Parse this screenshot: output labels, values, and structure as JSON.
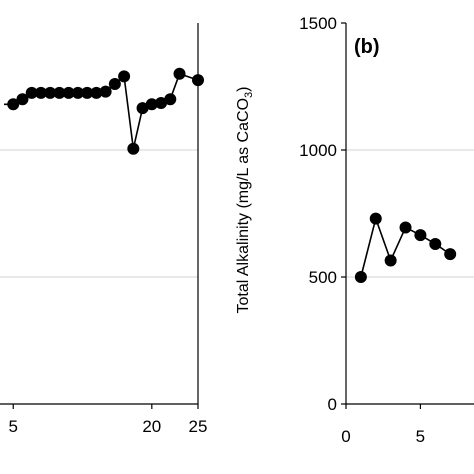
{
  "chart_data": [
    {
      "panel": "a",
      "type": "line",
      "partially_visible": true,
      "x_tick_labels": [
        "5",
        "20",
        "25"
      ],
      "xlim": [
        4,
        25
      ],
      "ylim": [
        0,
        1500
      ],
      "grid": "horizontal",
      "series": [
        {
          "x": [
            4,
            5,
            6,
            7,
            8,
            9,
            10,
            11,
            12,
            13,
            14,
            15,
            16,
            17,
            18,
            19,
            20,
            21,
            22,
            23,
            25
          ],
          "y": [
            1180,
            1180,
            1200,
            1225,
            1225,
            1225,
            1225,
            1225,
            1225,
            1225,
            1225,
            1230,
            1260,
            1290,
            1005,
            1165,
            1180,
            1185,
            1200,
            1300,
            1275
          ]
        }
      ],
      "color": "#000000"
    },
    {
      "panel": "b",
      "type": "line",
      "partially_visible": true,
      "panel_label": "(b)",
      "ylabel_main": "Total Alkalinity (mg/L as CaCO",
      "ylabel_sub": "3",
      "ylabel_end": ")",
      "y_tick_labels": [
        "1500",
        "1000",
        "500",
        "0"
      ],
      "x_tick_labels": [
        "0",
        "5"
      ],
      "xlim": [
        0,
        8.6
      ],
      "ylim": [
        0,
        1500
      ],
      "grid": "horizontal",
      "series": [
        {
          "x": [
            1,
            2,
            3,
            4,
            5,
            6,
            7
          ],
          "y": [
            500,
            730,
            565,
            695,
            665,
            630,
            590
          ]
        }
      ],
      "color": "#000000"
    }
  ]
}
